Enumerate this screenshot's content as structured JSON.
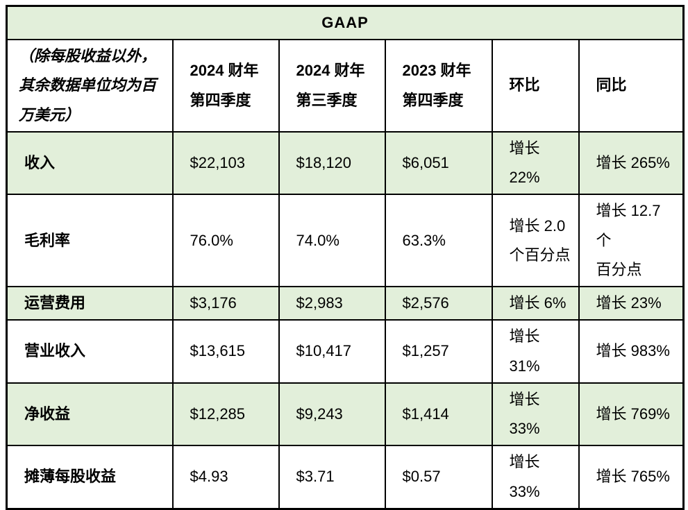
{
  "table": {
    "title": "GAAP",
    "corner_note": "（除每股收益以外，\n其余数据单位均为百\n万美元）",
    "columns": [
      "2024 财年\n第四季度",
      "2024 财年\n第三季度",
      "2023 财年\n第四季度",
      "环比",
      "同比"
    ],
    "rows": [
      {
        "label": "收入",
        "values": [
          "$22,103",
          "$18,120",
          "$6,051",
          "增长 22%",
          "增长 265%"
        ]
      },
      {
        "label": "毛利率",
        "values": [
          "76.0%",
          "74.0%",
          "63.3%",
          "增长 2.0\n个百分点",
          "增长 12.7 个\n百分点"
        ]
      },
      {
        "label": "运营费用",
        "values": [
          "$3,176",
          "$2,983",
          "$2,576",
          "增长 6%",
          "增长 23%"
        ]
      },
      {
        "label": "营业收入",
        "values": [
          "$13,615",
          "$10,417",
          "$1,257",
          "增长 31%",
          "增长 983%"
        ]
      },
      {
        "label": "净收益",
        "values": [
          "$12,285",
          "$9,243",
          "$1,414",
          "增长 33%",
          "增长 769%"
        ]
      },
      {
        "label": "摊薄每股收益",
        "values": [
          "$4.93",
          "$3.71",
          "$0.57",
          "增长 33%",
          "增长 765%"
        ]
      }
    ],
    "colors": {
      "highlight_bg": "#e2efda",
      "border": "#000000",
      "text": "#000000",
      "background": "#ffffff"
    }
  },
  "chart_data": {
    "type": "table",
    "title": "GAAP",
    "unit_note": "（除每股收益以外，其余数据单位均为百万美元）",
    "columns": [
      "（除每股收益以外，其余数据单位均为百万美元）",
      "2024 财年第四季度",
      "2024 财年第三季度",
      "2023 财年第四季度",
      "环比",
      "同比"
    ],
    "rows": [
      [
        "收入",
        "$22,103",
        "$18,120",
        "$6,051",
        "增长 22%",
        "增长 265%"
      ],
      [
        "毛利率",
        "76.0%",
        "74.0%",
        "63.3%",
        "增长 2.0 个百分点",
        "增长 12.7 个百分点"
      ],
      [
        "运营费用",
        "$3,176",
        "$2,983",
        "$2,576",
        "增长 6%",
        "增长 23%"
      ],
      [
        "营业收入",
        "$13,615",
        "$10,417",
        "$1,257",
        "增长 31%",
        "增长 983%"
      ],
      [
        "净收益",
        "$12,285",
        "$9,243",
        "$1,414",
        "增长 33%",
        "增长 769%"
      ],
      [
        "摊薄每股收益",
        "$4.93",
        "$3.71",
        "$0.57",
        "增长 33%",
        "增长 765%"
      ]
    ],
    "layout": {
      "striped_row_color": "#e2efda",
      "striped_rows": [
        "收入",
        "运营费用",
        "净收益"
      ],
      "header_row_color": "#ffffff",
      "title_row_color": "#e2efda",
      "grid": true
    }
  }
}
